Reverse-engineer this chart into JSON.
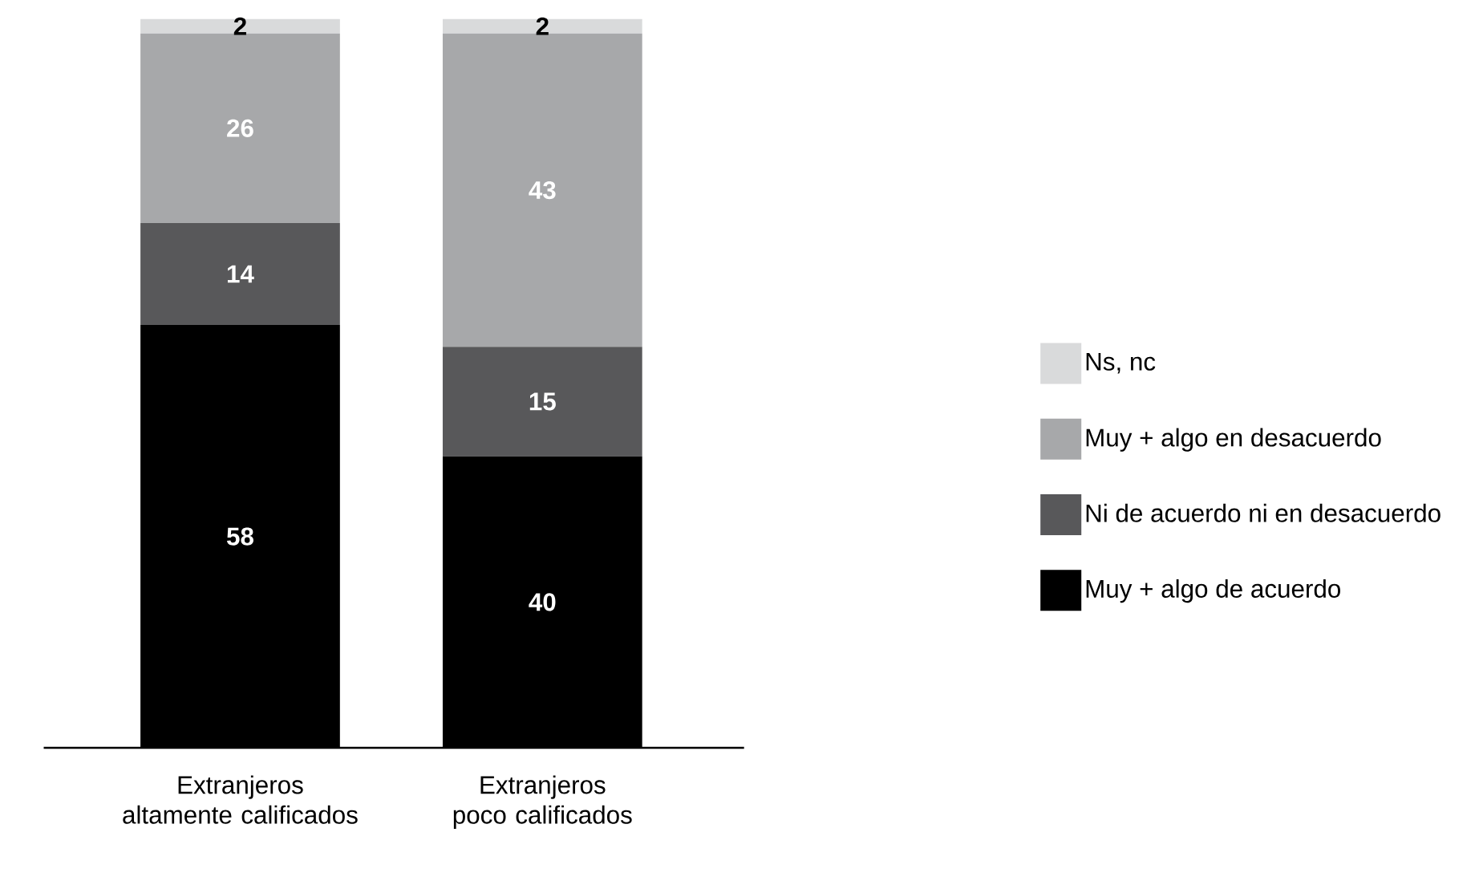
{
  "chart_data": {
    "type": "bar",
    "stacked": true,
    "data_labels": true,
    "legend": "right",
    "categories": [
      "Extranjeros altamente calificados",
      "Extranjeros poco calificados"
    ],
    "series": [
      {
        "name": "Muy + algo de acuerdo",
        "color": "#000000",
        "values": [
          58,
          40
        ]
      },
      {
        "name": "Ni de acuerdo ni en desacuerdo",
        "color": "#58585a",
        "values": [
          14,
          15
        ]
      },
      {
        "name": "Muy + algo en desacuerdo",
        "color": "#a7a8aa",
        "values": [
          26,
          43
        ]
      },
      {
        "name": "Ns, nc",
        "color": "#d9dadb",
        "values": [
          2,
          2
        ]
      }
    ]
  }
}
